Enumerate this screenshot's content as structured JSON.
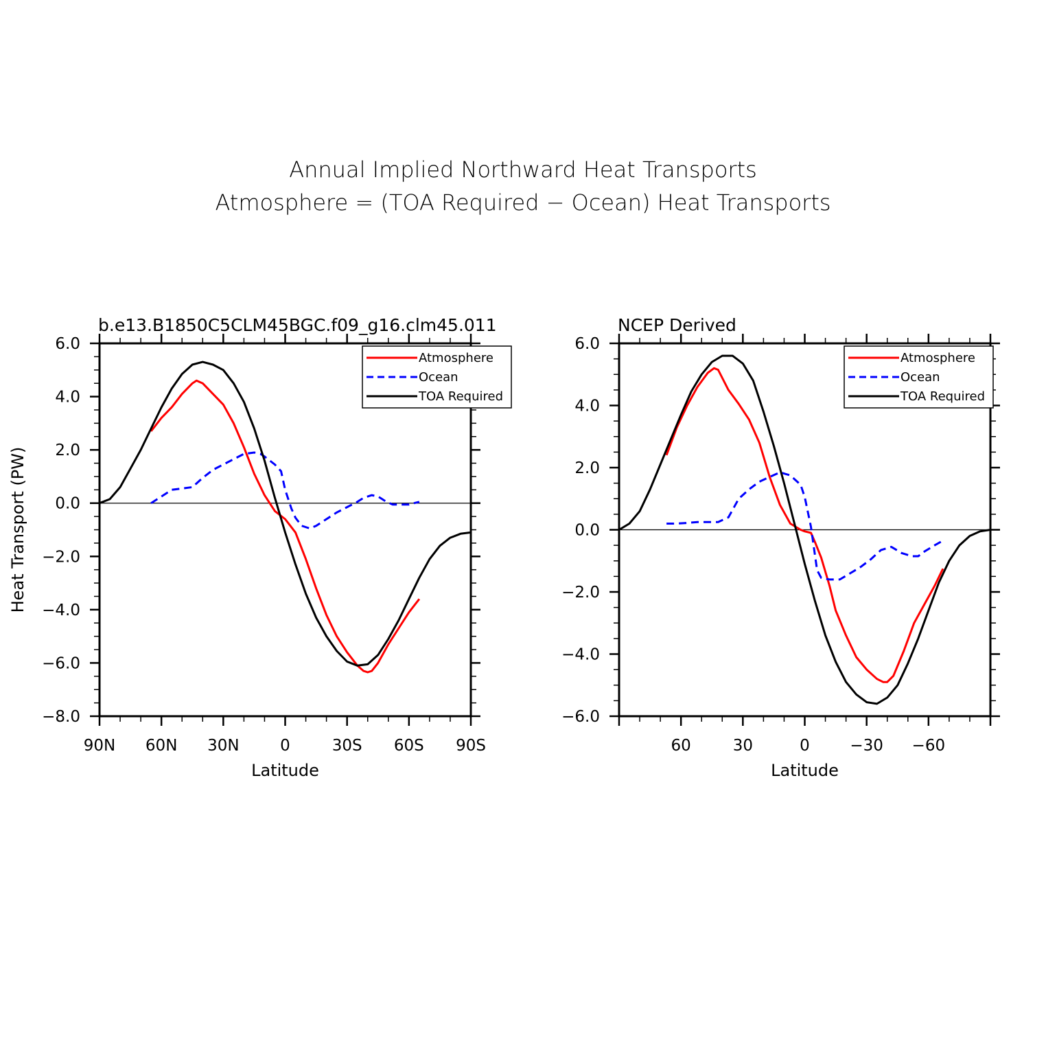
{
  "figure": {
    "title_line1": "Annual Implied Northward Heat Transports",
    "title_line2": "Atmosphere = (TOA Required − Ocean) Heat Transports"
  },
  "legend_entries": [
    "Atmosphere",
    "Ocean",
    "TOA Required"
  ],
  "colors": {
    "atmosphere": "#ff0000",
    "ocean": "#0000ff",
    "toa": "#000000"
  },
  "chart_data": [
    {
      "type": "line",
      "title": "b.e13.B1850C5CLM45BGC.f09_g16.clm45.011",
      "xlabel": "Latitude",
      "ylabel": "Heat Transport (PW)",
      "xlim": [
        90,
        -90
      ],
      "ylim": [
        -8,
        6
      ],
      "x_ticks": [
        90,
        60,
        30,
        0,
        -30,
        -60,
        -90
      ],
      "x_tick_labels": [
        "90N",
        "60N",
        "30N",
        "0",
        "30S",
        "60S",
        "90S"
      ],
      "y_ticks": [
        6,
        4,
        2,
        0,
        -2,
        -4,
        -6,
        -8
      ],
      "y_tick_labels": [
        "6.0",
        "4.0",
        "2.0",
        "0.0",
        "−2.0",
        "−4.0",
        "−6.0",
        "−8.0"
      ],
      "legend_position": "top-right",
      "series": [
        {
          "name": "Atmosphere",
          "color": "#ff0000",
          "style": "solid",
          "x": [
            65,
            60,
            55,
            50,
            45,
            43,
            40,
            35,
            30,
            25,
            20,
            15,
            10,
            5,
            0,
            -5,
            -10,
            -15,
            -20,
            -25,
            -30,
            -35,
            -38,
            -40,
            -42,
            -45,
            -50,
            -55,
            -60,
            -65
          ],
          "y": [
            2.7,
            3.2,
            3.6,
            4.1,
            4.5,
            4.6,
            4.5,
            4.1,
            3.7,
            3.0,
            2.1,
            1.1,
            0.3,
            -0.3,
            -0.6,
            -1.1,
            -2.1,
            -3.2,
            -4.2,
            -5.0,
            -5.6,
            -6.1,
            -6.3,
            -6.35,
            -6.3,
            -6.0,
            -5.3,
            -4.7,
            -4.1,
            -3.6
          ]
        },
        {
          "name": "Ocean",
          "color": "#0000ff",
          "style": "dashed",
          "x": [
            65,
            60,
            55,
            50,
            45,
            40,
            35,
            30,
            25,
            20,
            15,
            12,
            10,
            5,
            2,
            0,
            -3,
            -5,
            -8,
            -12,
            -15,
            -20,
            -25,
            -30,
            -35,
            -38,
            -42,
            -45,
            -48,
            -52,
            -55,
            -60,
            -65
          ],
          "y": [
            0.0,
            0.25,
            0.5,
            0.55,
            0.6,
            0.95,
            1.25,
            1.45,
            1.65,
            1.85,
            1.9,
            1.85,
            1.75,
            1.45,
            1.2,
            0.5,
            -0.2,
            -0.55,
            -0.85,
            -0.95,
            -0.85,
            -0.6,
            -0.35,
            -0.15,
            0.05,
            0.2,
            0.3,
            0.25,
            0.1,
            -0.05,
            -0.05,
            -0.05,
            0.05
          ]
        },
        {
          "name": "TOA Required",
          "color": "#000000",
          "style": "solid",
          "x": [
            90,
            85,
            80,
            75,
            70,
            65,
            60,
            55,
            50,
            45,
            40,
            35,
            30,
            25,
            20,
            15,
            10,
            5,
            0,
            -5,
            -10,
            -15,
            -20,
            -25,
            -30,
            -35,
            -40,
            -45,
            -50,
            -55,
            -60,
            -65,
            -70,
            -75,
            -80,
            -85,
            -90
          ],
          "y": [
            0.0,
            0.15,
            0.6,
            1.3,
            2.0,
            2.8,
            3.6,
            4.3,
            4.85,
            5.2,
            5.3,
            5.2,
            5.0,
            4.5,
            3.8,
            2.8,
            1.6,
            0.2,
            -1.1,
            -2.3,
            -3.4,
            -4.3,
            -5.0,
            -5.55,
            -5.95,
            -6.1,
            -6.05,
            -5.7,
            -5.1,
            -4.4,
            -3.6,
            -2.8,
            -2.1,
            -1.6,
            -1.3,
            -1.15,
            -1.1
          ]
        }
      ]
    },
    {
      "type": "line",
      "title": "NCEP Derived",
      "xlabel": "Latitude",
      "ylabel": "",
      "xlim": [
        90,
        -90
      ],
      "ylim": [
        -6,
        6
      ],
      "x_ticks": [
        60,
        30,
        0,
        -30,
        -60
      ],
      "x_tick_labels": [
        "60",
        "30",
        "0",
        "−30",
        "−60"
      ],
      "y_ticks": [
        6,
        4,
        2,
        0,
        -2,
        -4,
        -6
      ],
      "y_tick_labels": [
        "6.0",
        "4.0",
        "2.0",
        "0.0",
        "−2.0",
        "−4.0",
        "−6.0"
      ],
      "legend_position": "top-right",
      "series": [
        {
          "name": "Atmosphere",
          "color": "#ff0000",
          "style": "solid",
          "x": [
            67,
            62,
            57,
            52,
            47,
            44,
            42,
            37,
            32,
            27,
            22,
            17,
            12,
            7,
            2,
            0,
            -3,
            -5,
            -8,
            -12,
            -15,
            -20,
            -25,
            -30,
            -35,
            -38,
            -40,
            -43,
            -48,
            -53,
            -58,
            -63,
            -67
          ],
          "y": [
            2.4,
            3.3,
            4.0,
            4.6,
            5.05,
            5.2,
            5.15,
            4.5,
            4.05,
            3.55,
            2.8,
            1.7,
            0.8,
            0.2,
            0.0,
            -0.05,
            -0.1,
            -0.4,
            -0.9,
            -1.8,
            -2.6,
            -3.4,
            -4.1,
            -4.5,
            -4.8,
            -4.9,
            -4.9,
            -4.7,
            -3.9,
            -3.0,
            -2.4,
            -1.8,
            -1.25
          ]
        },
        {
          "name": "Ocean",
          "color": "#0000ff",
          "style": "dashed",
          "x": [
            67,
            62,
            57,
            52,
            47,
            42,
            37,
            32,
            27,
            22,
            17,
            12,
            7,
            2,
            0,
            -3,
            -6,
            -8,
            -12,
            -17,
            -22,
            -27,
            -32,
            -37,
            -42,
            -47,
            -52,
            -55,
            -58,
            -63,
            -67
          ],
          "y": [
            0.2,
            0.2,
            0.22,
            0.25,
            0.25,
            0.25,
            0.4,
            1.0,
            1.3,
            1.55,
            1.7,
            1.85,
            1.75,
            1.45,
            1.05,
            0.1,
            -1.3,
            -1.55,
            -1.6,
            -1.6,
            -1.4,
            -1.2,
            -0.95,
            -0.65,
            -0.55,
            -0.75,
            -0.85,
            -0.85,
            -0.7,
            -0.5,
            -0.35
          ]
        },
        {
          "name": "TOA Required",
          "color": "#000000",
          "style": "solid",
          "x": [
            90,
            85,
            80,
            75,
            70,
            65,
            60,
            55,
            50,
            45,
            40,
            35,
            30,
            25,
            20,
            15,
            10,
            5,
            0,
            -5,
            -10,
            -15,
            -20,
            -25,
            -30,
            -35,
            -40,
            -45,
            -50,
            -55,
            -60,
            -65,
            -70,
            -75,
            -80,
            -85,
            -90
          ],
          "y": [
            0.0,
            0.2,
            0.6,
            1.3,
            2.1,
            2.9,
            3.7,
            4.45,
            5.0,
            5.4,
            5.6,
            5.6,
            5.35,
            4.8,
            3.8,
            2.7,
            1.5,
            0.2,
            -1.1,
            -2.3,
            -3.4,
            -4.25,
            -4.9,
            -5.3,
            -5.55,
            -5.6,
            -5.4,
            -5.0,
            -4.3,
            -3.5,
            -2.6,
            -1.7,
            -1.0,
            -0.5,
            -0.2,
            -0.05,
            0.0
          ]
        }
      ]
    }
  ]
}
